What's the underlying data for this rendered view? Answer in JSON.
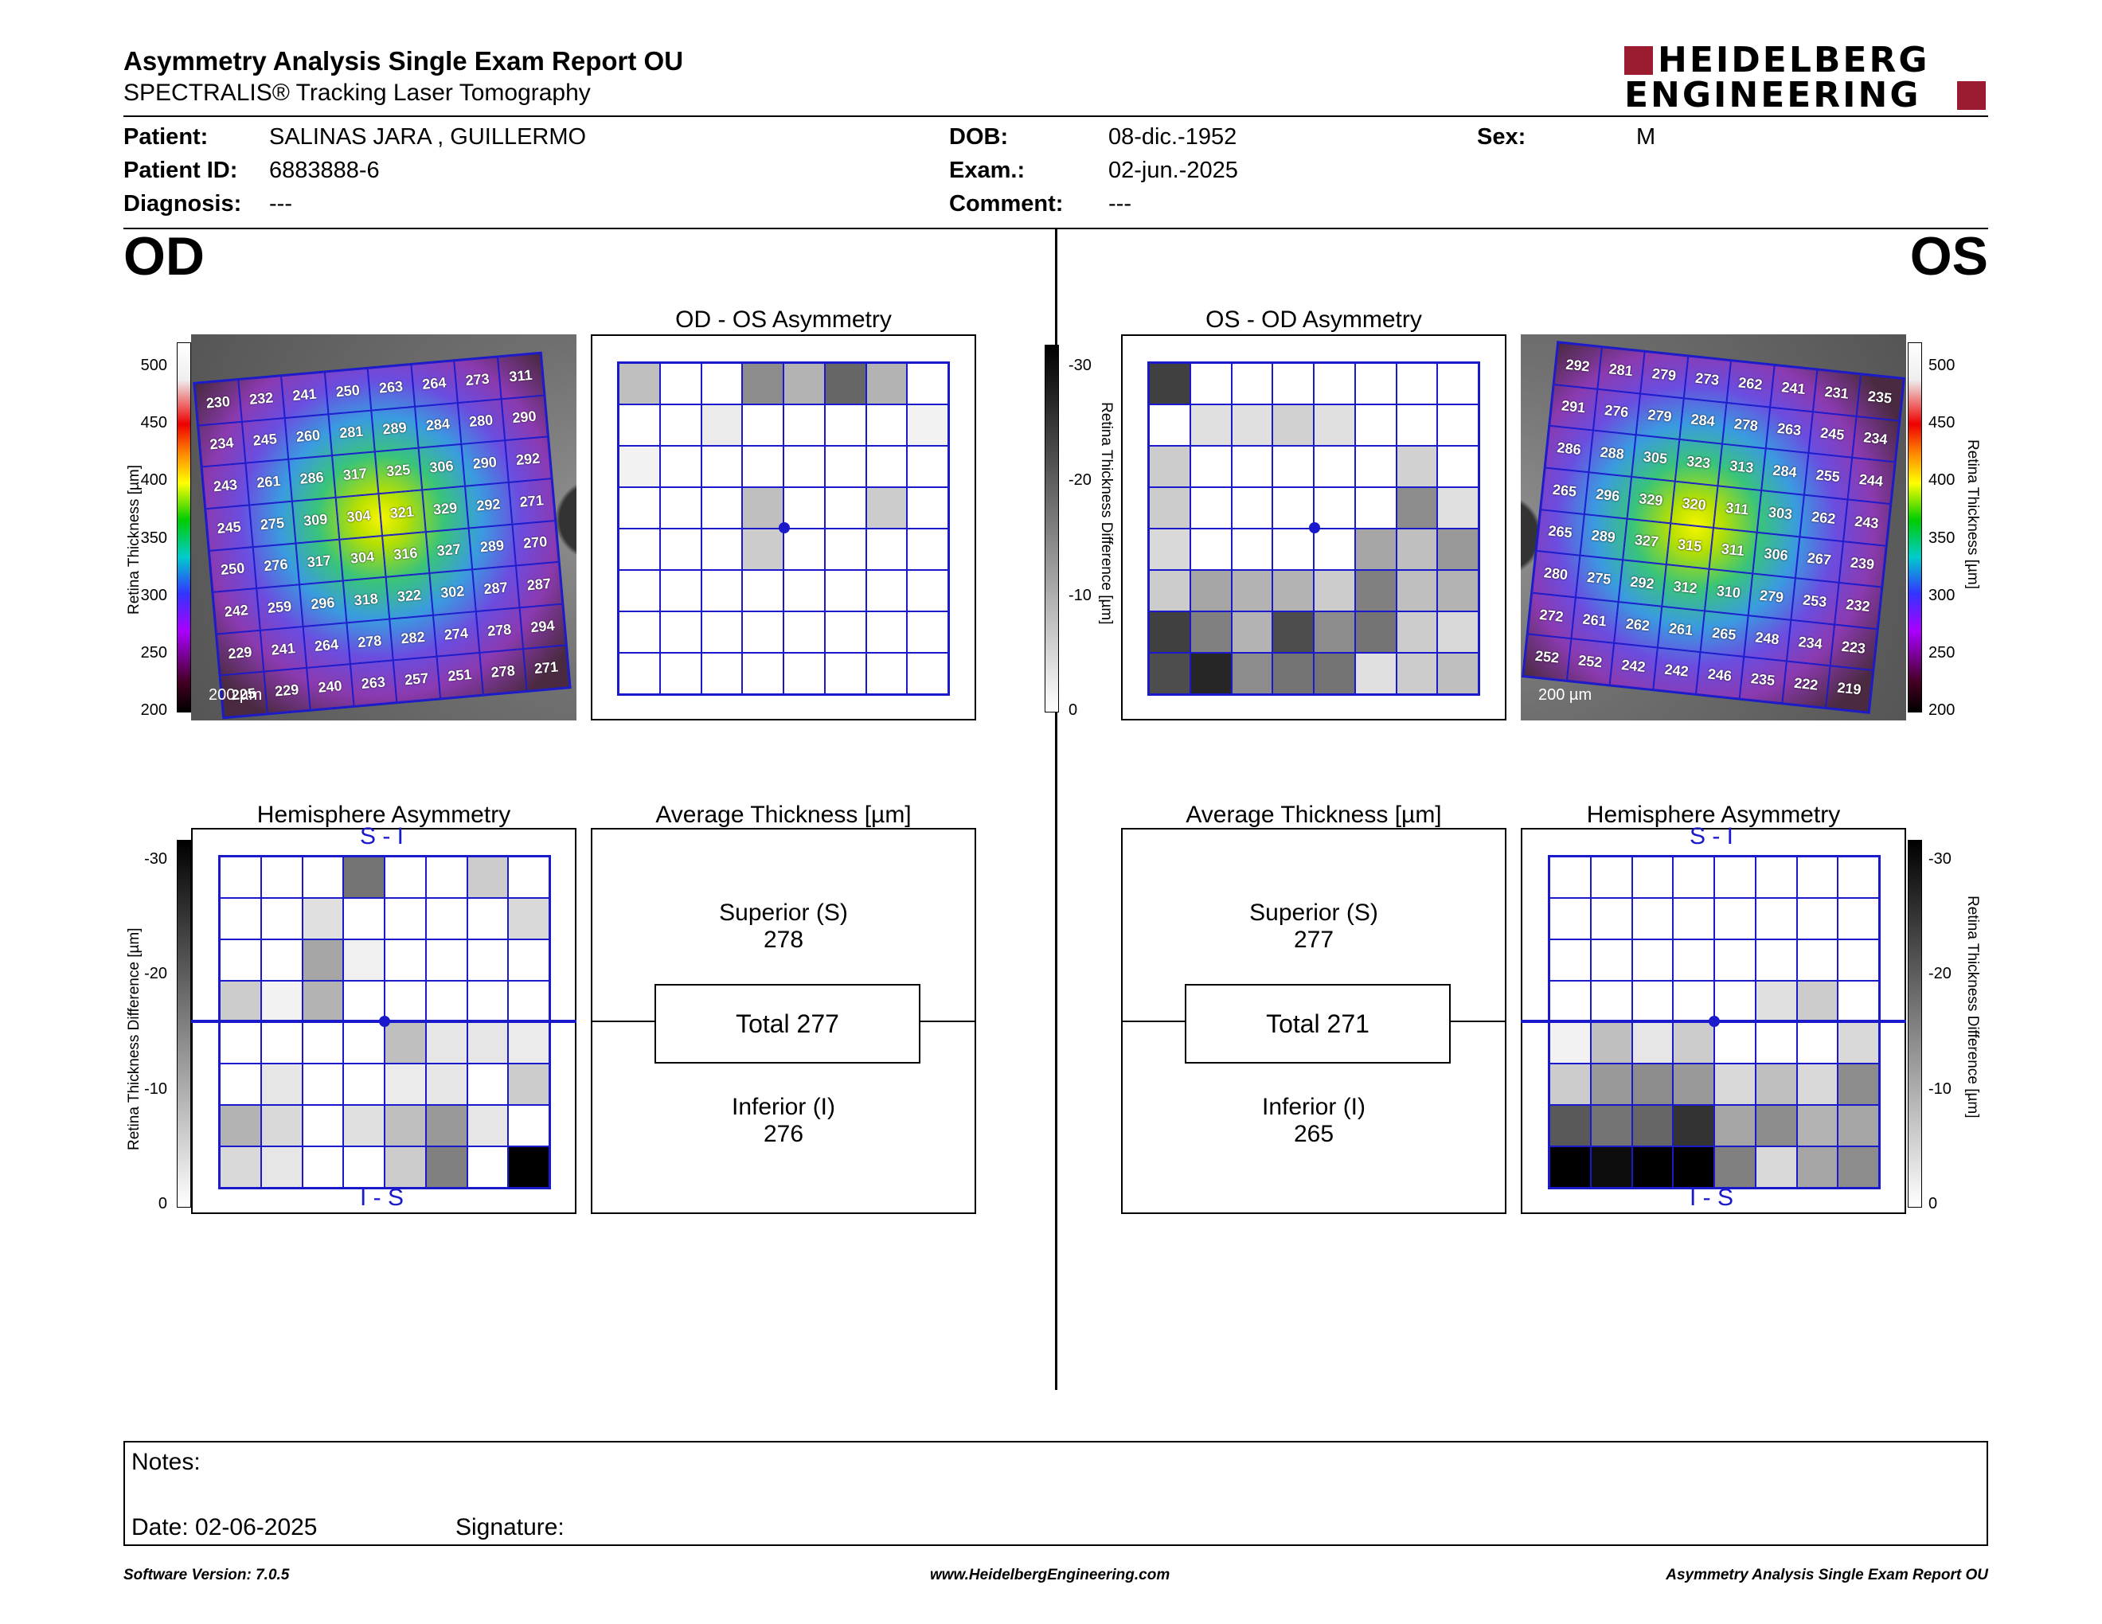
{
  "header": {
    "title": "Asymmetry Analysis Single Exam Report OU",
    "subtitle": "SPECTRALIS® Tracking Laser Tomography",
    "logo_line1": "HEIDELBERG",
    "logo_line2": "ENGINEERING"
  },
  "patient": {
    "patient_label": "Patient:",
    "patient_value": "SALINAS JARA , GUILLERMO",
    "id_label": "Patient ID:",
    "id_value": "6883888-6",
    "diag_label": "Diagnosis:",
    "diag_value": "---",
    "dob_label": "DOB:",
    "dob_value": "08-dic.-1952",
    "exam_label": "Exam.:",
    "exam_value": "02-jun.-2025",
    "comment_label": "Comment:",
    "comment_value": "---",
    "sex_label": "Sex:",
    "sex_value": "M"
  },
  "od": {
    "eye_label": "OD",
    "asym_title": "OD - OS Asymmetry",
    "hemi_title": "Hemisphere Asymmetry",
    "avg_title": "Average Thickness [µm]",
    "superior_label": "Superior (S)",
    "superior_value": "278",
    "total_label": "Total 277",
    "inferior_label": "Inferior (I)",
    "inferior_value": "276",
    "hemi_top": "S - I",
    "hemi_bottom": "I - S",
    "scale_label": "200 µm",
    "thickness_grid": [
      [
        230,
        232,
        241,
        250,
        263,
        264,
        273,
        311
      ],
      [
        234,
        245,
        260,
        281,
        289,
        284,
        280,
        290
      ],
      [
        243,
        261,
        286,
        317,
        325,
        306,
        290,
        292
      ],
      [
        245,
        275,
        309,
        304,
        321,
        329,
        292,
        271
      ],
      [
        250,
        276,
        317,
        304,
        316,
        327,
        289,
        270
      ],
      [
        242,
        259,
        296,
        318,
        322,
        302,
        287,
        287
      ],
      [
        229,
        241,
        264,
        278,
        282,
        274,
        278,
        294
      ],
      [
        225,
        229,
        240,
        263,
        257,
        251,
        278,
        271
      ]
    ],
    "asym_shading": [
      [
        0.25,
        0,
        0,
        0.45,
        0.3,
        0.6,
        0.3,
        0
      ],
      [
        0,
        0,
        0.08,
        0,
        0,
        0,
        0,
        0.05
      ],
      [
        0.05,
        0,
        0,
        0,
        0,
        0,
        0,
        0
      ],
      [
        0,
        0,
        0,
        0.25,
        0,
        0,
        0.2,
        0
      ],
      [
        0,
        0,
        0,
        0.2,
        0,
        0,
        0,
        0
      ],
      [
        0,
        0,
        0,
        0,
        0,
        0,
        0,
        0
      ],
      [
        0,
        0,
        0,
        0,
        0,
        0,
        0,
        0
      ],
      [
        0,
        0,
        0,
        0,
        0,
        0,
        0,
        0
      ]
    ],
    "hemi_shading": [
      [
        0,
        0,
        0,
        0.55,
        0,
        0,
        0.2,
        0
      ],
      [
        0,
        0,
        0.12,
        0,
        0,
        0,
        0,
        0.15
      ],
      [
        0,
        0,
        0.35,
        0.06,
        0,
        0,
        0,
        0
      ],
      [
        0.2,
        0.05,
        0.3,
        0,
        0,
        0,
        0,
        0
      ],
      [
        0,
        0,
        0,
        0,
        0.25,
        0.1,
        0.1,
        0.08
      ],
      [
        0,
        0.1,
        0,
        0,
        0.08,
        0.1,
        0,
        0.2
      ],
      [
        0.3,
        0.15,
        0,
        0.12,
        0.25,
        0.4,
        0.1,
        0
      ],
      [
        0.15,
        0.1,
        0,
        0,
        0.2,
        0.5,
        0,
        1.0
      ]
    ]
  },
  "os": {
    "eye_label": "OS",
    "asym_title": "OS - OD Asymmetry",
    "hemi_title": "Hemisphere Asymmetry",
    "avg_title": "Average Thickness [µm]",
    "superior_label": "Superior (S)",
    "superior_value": "277",
    "total_label": "Total 271",
    "inferior_label": "Inferior (I)",
    "inferior_value": "265",
    "hemi_top": "S - I",
    "hemi_bottom": "I - S",
    "scale_label": "200 µm",
    "thickness_grid": [
      [
        292,
        281,
        279,
        273,
        262,
        241,
        231,
        235
      ],
      [
        291,
        276,
        279,
        284,
        278,
        263,
        245,
        234
      ],
      [
        286,
        288,
        305,
        323,
        313,
        284,
        255,
        244
      ],
      [
        265,
        296,
        329,
        320,
        311,
        303,
        262,
        243
      ],
      [
        265,
        289,
        327,
        315,
        311,
        306,
        267,
        239
      ],
      [
        280,
        275,
        292,
        312,
        310,
        279,
        253,
        232
      ],
      [
        272,
        261,
        262,
        261,
        265,
        248,
        234,
        223
      ],
      [
        252,
        252,
        242,
        242,
        246,
        235,
        222,
        219
      ]
    ],
    "asym_shading": [
      [
        0.75,
        0,
        0,
        0,
        0,
        0,
        0,
        0
      ],
      [
        0,
        0.12,
        0.12,
        0.18,
        0.12,
        0,
        0,
        0
      ],
      [
        0.2,
        0,
        0,
        0,
        0,
        0,
        0.18,
        0
      ],
      [
        0.2,
        0,
        0,
        0,
        0,
        0,
        0.45,
        0.12
      ],
      [
        0.15,
        0,
        0,
        0,
        0,
        0.35,
        0.25,
        0.4
      ],
      [
        0.2,
        0.35,
        0.3,
        0.3,
        0.2,
        0.5,
        0.25,
        0.3
      ],
      [
        0.75,
        0.5,
        0.3,
        0.7,
        0.45,
        0.55,
        0.2,
        0.15
      ],
      [
        0.7,
        0.85,
        0.45,
        0.55,
        0.55,
        0.12,
        0.2,
        0.25
      ]
    ],
    "hemi_shading": [
      [
        0,
        0,
        0,
        0,
        0,
        0,
        0,
        0
      ],
      [
        0,
        0,
        0,
        0,
        0,
        0,
        0,
        0
      ],
      [
        0,
        0,
        0,
        0,
        0,
        0,
        0,
        0
      ],
      [
        0,
        0,
        0,
        0,
        0,
        0.12,
        0.2,
        0
      ],
      [
        0.05,
        0.25,
        0.1,
        0.2,
        0,
        0,
        0,
        0.15
      ],
      [
        0.2,
        0.4,
        0.45,
        0.4,
        0.15,
        0.25,
        0.15,
        0.45
      ],
      [
        0.65,
        0.55,
        0.6,
        0.8,
        0.35,
        0.45,
        0.3,
        0.35
      ],
      [
        1.0,
        0.95,
        1.0,
        1.0,
        0.5,
        0.15,
        0.35,
        0.45
      ]
    ]
  },
  "scales": {
    "thickness_label": "Retina  Thickness [µm]",
    "thickness_ticks": [
      "500",
      "450",
      "400",
      "350",
      "300",
      "250",
      "200"
    ],
    "difference_label": "Retina Thickness Difference [µm]",
    "difference_ticks": [
      "-30",
      "-20",
      "-10",
      "0"
    ]
  },
  "notes": {
    "notes_label": "Notes:",
    "date_label": "Date: 02-06-2025",
    "signature_label": "Signature:"
  },
  "footer": {
    "left": "Software Version: 7.0.5",
    "center": "www.HeidelbergEngineering.com",
    "right": "Asymmetry Analysis Single Exam Report OU"
  },
  "colors": {
    "grid_blue": "#1a1acc",
    "logo_red": "#9b1b30"
  }
}
